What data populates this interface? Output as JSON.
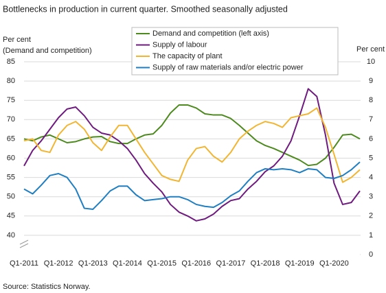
{
  "chart_data": {
    "type": "line",
    "title": "Bottlenecks  in production  in current  quarter. Smoothed  seasonally adjusted",
    "ylabel": [
      "Per cent",
      "(Demand and competition)"
    ],
    "y2label": "Per cent",
    "source": "Source: Statistics Norway.",
    "categories": [
      "Q1-2011",
      null,
      null,
      null,
      "Q1-2012",
      null,
      null,
      null,
      "Q1-2013",
      null,
      null,
      null,
      "Q1-2014",
      null,
      null,
      null,
      "Q1-2015",
      null,
      null,
      null,
      "Q1-2016",
      null,
      null,
      null,
      "Q1-2017",
      null,
      null,
      null,
      "Q1-2018",
      null,
      null,
      null,
      "Q1-2019",
      null,
      null,
      null,
      "Q1-2020",
      null,
      null,
      null
    ],
    "ylim": [
      35,
      85
    ],
    "yticks": [
      40,
      45,
      50,
      55,
      60,
      65,
      70,
      75,
      80,
      85
    ],
    "y2lim": [
      0,
      10
    ],
    "y2ticks": [
      0,
      1,
      2,
      3,
      4,
      5,
      6,
      7,
      8,
      9,
      10
    ],
    "grid": true,
    "series": [
      {
        "name": "Demand and competition (left axis)",
        "color": "#4d8a1e",
        "values": [
          65,
          64.5,
          65.5,
          66,
          65,
          64,
          64.3,
          65,
          65.5,
          65.6,
          64.3,
          63.8,
          63.8,
          65,
          66,
          66.3,
          68.5,
          71.7,
          73.8,
          73.8,
          73,
          71.5,
          71.2,
          71.2,
          70.3,
          68.5,
          66.5,
          64.5,
          63.3,
          62.5,
          61.5,
          60.5,
          59.5,
          58.1,
          58.4,
          60.0,
          62.8,
          66,
          66.2,
          65
        ]
      },
      {
        "name": "Supply of labour",
        "color": "#6e1a7e",
        "axis": "y2",
        "values": [
          4.6,
          5.4,
          5.9,
          6.5,
          7.1,
          7.55,
          7.65,
          7.2,
          6.6,
          6.3,
          6.2,
          5.9,
          5.5,
          4.9,
          4.2,
          3.7,
          3.25,
          2.6,
          2.2,
          2.0,
          1.75,
          1.85,
          2.1,
          2.5,
          2.8,
          2.9,
          3.4,
          3.8,
          4.3,
          4.6,
          5.1,
          5.9,
          7.2,
          8.6,
          8.2,
          6.2,
          3.7,
          2.6,
          2.7,
          3.3
        ]
      },
      {
        "name": "The capacity of plant",
        "color": "#f2b531",
        "axis": "y2",
        "values": [
          5.9,
          6.0,
          5.4,
          5.3,
          6.2,
          6.7,
          6.9,
          6.5,
          5.8,
          5.4,
          6.1,
          6.7,
          6.7,
          6.0,
          5.3,
          4.7,
          4.1,
          3.9,
          3.8,
          4.9,
          5.5,
          5.6,
          5.1,
          4.8,
          5.3,
          6.0,
          6.4,
          6.7,
          6.9,
          6.8,
          6.6,
          7.1,
          7.2,
          7.3,
          7.6,
          6.6,
          5.2,
          3.75,
          4.0,
          4.4
        ]
      },
      {
        "name": "Supply of raw materials and/or electric power",
        "color": "#1f7ec2",
        "axis": "y2",
        "values": [
          3.4,
          3.15,
          3.6,
          4.1,
          4.2,
          4.0,
          3.4,
          2.4,
          2.35,
          2.8,
          3.3,
          3.55,
          3.55,
          3.1,
          2.8,
          2.85,
          2.9,
          3.0,
          3.0,
          2.85,
          2.6,
          2.5,
          2.45,
          2.7,
          3.05,
          3.3,
          3.8,
          4.25,
          4.45,
          4.4,
          4.45,
          4.4,
          4.25,
          4.45,
          4.4,
          4.0,
          3.95,
          4.1,
          4.4,
          4.8
        ]
      }
    ]
  }
}
